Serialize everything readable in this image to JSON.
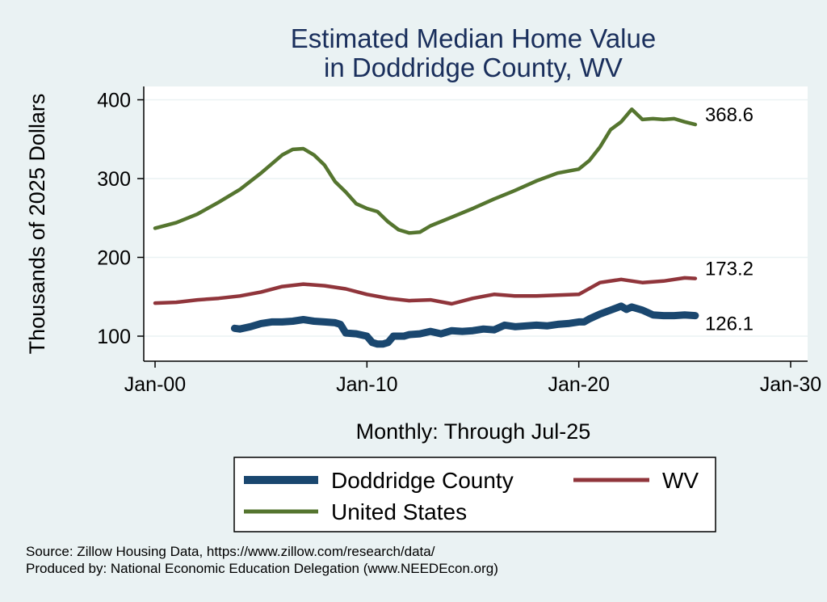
{
  "chart_data": {
    "type": "line",
    "title": [
      "Estimated Median Home Value",
      "in Doddridge County, WV"
    ],
    "xlabel": "Monthly: Through Jul-25",
    "ylabel": "Thousands of 2025 Dollars",
    "x_ticks": [
      {
        "year": 2000,
        "label": "Jan-00"
      },
      {
        "year": 2010,
        "label": "Jan-10"
      },
      {
        "year": 2020,
        "label": "Jan-20"
      },
      {
        "year": 2030,
        "label": "Jan-30"
      }
    ],
    "y_ticks": [
      100,
      200,
      300,
      400
    ],
    "xlim": [
      2000,
      2030
    ],
    "ylim": [
      90,
      400
    ],
    "grid": true,
    "legend_position": "bottom",
    "series": [
      {
        "name": "Doddridge County",
        "color": "#1a476f",
        "end_label": "126.1",
        "points": [
          [
            2003.75,
            110
          ],
          [
            2004.0,
            109
          ],
          [
            2004.5,
            112
          ],
          [
            2005.0,
            116
          ],
          [
            2005.5,
            118
          ],
          [
            2006.0,
            118
          ],
          [
            2006.5,
            119
          ],
          [
            2007.0,
            121
          ],
          [
            2007.5,
            119
          ],
          [
            2008.0,
            118
          ],
          [
            2008.5,
            117
          ],
          [
            2008.75,
            115
          ],
          [
            2009.0,
            104
          ],
          [
            2009.5,
            103
          ],
          [
            2010.0,
            100
          ],
          [
            2010.25,
            92
          ],
          [
            2010.5,
            90
          ],
          [
            2010.75,
            90
          ],
          [
            2011.0,
            92
          ],
          [
            2011.25,
            100
          ],
          [
            2011.75,
            100
          ],
          [
            2012.0,
            102
          ],
          [
            2012.5,
            103
          ],
          [
            2013.0,
            106
          ],
          [
            2013.5,
            103
          ],
          [
            2014.0,
            107
          ],
          [
            2014.5,
            106
          ],
          [
            2015.0,
            107
          ],
          [
            2015.5,
            109
          ],
          [
            2016.0,
            108
          ],
          [
            2016.5,
            114
          ],
          [
            2017.0,
            112
          ],
          [
            2017.5,
            113
          ],
          [
            2018.0,
            114
          ],
          [
            2018.5,
            113
          ],
          [
            2019.0,
            115
          ],
          [
            2019.5,
            116
          ],
          [
            2020.0,
            118
          ],
          [
            2020.25,
            118
          ],
          [
            2020.5,
            122
          ],
          [
            2021.0,
            128
          ],
          [
            2021.5,
            133
          ],
          [
            2022.0,
            138
          ],
          [
            2022.25,
            134
          ],
          [
            2022.5,
            137
          ],
          [
            2023.0,
            133
          ],
          [
            2023.5,
            127
          ],
          [
            2024.0,
            126
          ],
          [
            2024.5,
            126
          ],
          [
            2025.0,
            127
          ],
          [
            2025.5,
            126.1
          ]
        ]
      },
      {
        "name": "WV",
        "color": "#90353b",
        "end_label": "173.2",
        "points": [
          [
            2000.0,
            142
          ],
          [
            2001.0,
            143
          ],
          [
            2002.0,
            146
          ],
          [
            2003.0,
            148
          ],
          [
            2004.0,
            151
          ],
          [
            2005.0,
            156
          ],
          [
            2006.0,
            163
          ],
          [
            2007.0,
            166
          ],
          [
            2008.0,
            164
          ],
          [
            2009.0,
            160
          ],
          [
            2010.0,
            153
          ],
          [
            2011.0,
            148
          ],
          [
            2012.0,
            145
          ],
          [
            2013.0,
            146
          ],
          [
            2014.0,
            141
          ],
          [
            2015.0,
            148
          ],
          [
            2016.0,
            153
          ],
          [
            2017.0,
            151
          ],
          [
            2018.0,
            151
          ],
          [
            2019.0,
            152
          ],
          [
            2020.0,
            153
          ],
          [
            2021.0,
            168
          ],
          [
            2022.0,
            172
          ],
          [
            2023.0,
            168
          ],
          [
            2024.0,
            170
          ],
          [
            2025.0,
            174
          ],
          [
            2025.5,
            173.2
          ]
        ]
      },
      {
        "name": "United States",
        "color": "#55752f",
        "end_label": "368.6",
        "points": [
          [
            2000.0,
            237
          ],
          [
            2001.0,
            244
          ],
          [
            2002.0,
            255
          ],
          [
            2003.0,
            270
          ],
          [
            2004.0,
            286
          ],
          [
            2005.0,
            307
          ],
          [
            2006.0,
            330
          ],
          [
            2006.5,
            337
          ],
          [
            2007.0,
            338
          ],
          [
            2007.5,
            330
          ],
          [
            2008.0,
            317
          ],
          [
            2008.5,
            296
          ],
          [
            2009.0,
            283
          ],
          [
            2009.5,
            268
          ],
          [
            2010.0,
            262
          ],
          [
            2010.5,
            258
          ],
          [
            2011.0,
            245
          ],
          [
            2011.5,
            235
          ],
          [
            2012.0,
            231
          ],
          [
            2012.5,
            232
          ],
          [
            2013.0,
            240
          ],
          [
            2014.0,
            251
          ],
          [
            2015.0,
            262
          ],
          [
            2016.0,
            274
          ],
          [
            2017.0,
            285
          ],
          [
            2018.0,
            297
          ],
          [
            2019.0,
            307
          ],
          [
            2020.0,
            312
          ],
          [
            2020.5,
            323
          ],
          [
            2021.0,
            340
          ],
          [
            2021.5,
            362
          ],
          [
            2022.0,
            372
          ],
          [
            2022.5,
            388
          ],
          [
            2023.0,
            375
          ],
          [
            2023.5,
            376
          ],
          [
            2024.0,
            375
          ],
          [
            2024.5,
            376
          ],
          [
            2025.0,
            372
          ],
          [
            2025.5,
            368.6
          ]
        ]
      }
    ]
  },
  "notes": {
    "source": "Source: Zillow Housing Data, https://www.zillow.com/research/data/",
    "produced_by": "Produced by: National Economic Education Delegation (www.NEEDEcon.org)"
  }
}
